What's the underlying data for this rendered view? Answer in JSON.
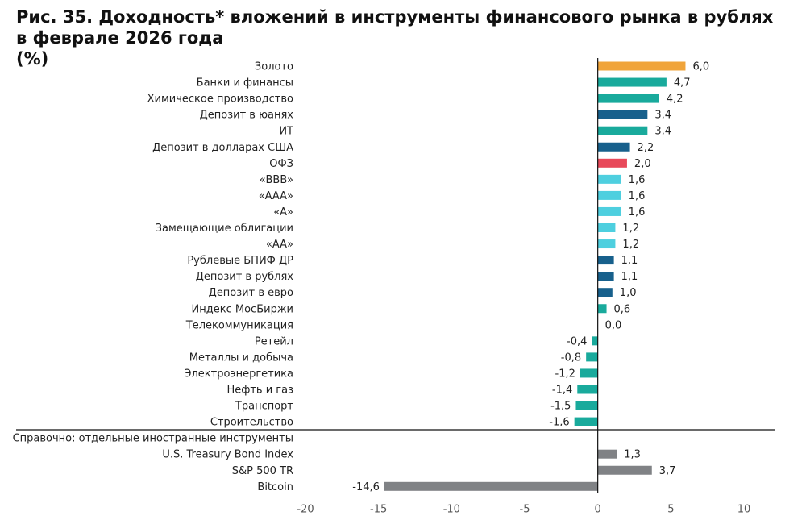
{
  "chart_data": {
    "type": "hbar",
    "title_lines": [
      "Рис. 35. Доходность* вложений в инструменты финансового рынка в рублях",
      "в феврале 2026 года",
      "(%)"
    ],
    "categories": [
      "Золото",
      "Банки и финансы",
      "Химическое производство",
      "Депозит в юанях",
      "ИТ",
      "Депозит в долларах США",
      "ОФЗ",
      "«BBB»",
      "«AAA»",
      "«A»",
      "Замещающие облигации",
      "«AA»",
      "Рублевые БПИФ ДР",
      "Депозит в рублях",
      "Депозит в евро",
      "Индекс МосБиржи",
      "Телекоммуникация",
      "Ретейл",
      "Металлы и добыча",
      "Электроэнергетика",
      "Нефть и газ",
      "Транспорт",
      "Строительство",
      "Справочно: отдельные иностранные инструменты",
      "U.S. Treasury Bond Index",
      "S&P 500 TR",
      "Bitcoin"
    ],
    "values": [
      6.0,
      4.7,
      4.2,
      3.4,
      3.4,
      2.2,
      2.0,
      1.6,
      1.6,
      1.6,
      1.2,
      1.2,
      1.1,
      1.1,
      1.0,
      0.6,
      0.0,
      -0.4,
      -0.8,
      -1.2,
      -1.4,
      -1.5,
      -1.6,
      null,
      1.3,
      3.7,
      -14.6
    ],
    "value_labels": [
      "6,0",
      "4,7",
      "4,2",
      "3,4",
      "3,4",
      "2,2",
      "2,0",
      "1,6",
      "1,6",
      "1,6",
      "1,2",
      "1,2",
      "1,1",
      "1,1",
      "1,0",
      "0,6",
      "0,0",
      "-0,4",
      "-0,8",
      "-1,2",
      "-1,4",
      "-1,5",
      "-1,6",
      null,
      "1,3",
      "3,7",
      "-14,6"
    ],
    "colors": [
      "#f0a43a",
      "#19aa9c",
      "#19aa9c",
      "#17608c",
      "#19aa9c",
      "#17608c",
      "#e8495a",
      "#4ecfdf",
      "#4ecfdf",
      "#4ecfdf",
      "#4ecfdf",
      "#4ecfdf",
      "#17608c",
      "#17608c",
      "#17608c",
      "#19aa9c",
      "#19aa9c",
      "#19aa9c",
      "#19aa9c",
      "#19aa9c",
      "#19aa9c",
      "#19aa9c",
      "#19aa9c",
      null,
      "#808285",
      "#808285",
      "#808285"
    ],
    "xlim": [
      -20,
      10
    ],
    "xticks": [
      -20,
      -15,
      -10,
      -5,
      0,
      5,
      10
    ]
  }
}
